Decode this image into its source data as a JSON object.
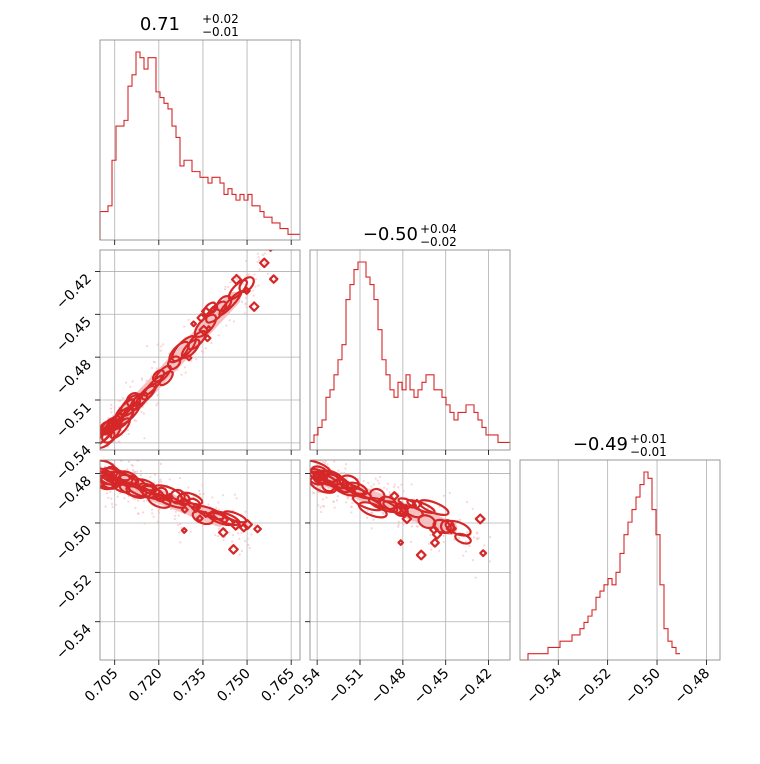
{
  "colors": {
    "series": "#d62728",
    "fill": "#f4b4b6",
    "grid": "#b0b0b0",
    "frame": "#808080"
  },
  "chart_data": {
    "type": "corner",
    "grid": true,
    "parameters": [
      {
        "titles": {
          "main": "0.71",
          "upper": "+0.02",
          "lower": "−0.01"
        },
        "range": [
          0.7,
          0.768
        ],
        "ticks": [
          0.705,
          0.72,
          0.735,
          0.75,
          0.765
        ],
        "tick_labels": [
          "0.705",
          "0.720",
          "0.735",
          "0.750",
          "0.765"
        ]
      },
      {
        "titles": {
          "main": "−0.50",
          "upper": "+0.04",
          "lower": "−0.02"
        },
        "range": [
          -0.545,
          -0.405
        ],
        "ticks": [
          -0.54,
          -0.51,
          -0.48,
          -0.45,
          -0.42
        ],
        "tick_labels": [
          "−0.54",
          "−0.51",
          "−0.48",
          "−0.45",
          "−0.42"
        ]
      },
      {
        "titles": {
          "main": "−0.49",
          "upper": "+0.01",
          "lower": "−0.01"
        },
        "range": [
          -0.5555,
          -0.4745
        ],
        "ticks": [
          -0.54,
          -0.52,
          -0.5,
          -0.48
        ],
        "tick_labels": [
          "−0.54",
          "−0.52",
          "−0.50",
          "−0.48"
        ]
      }
    ],
    "histograms": [
      {
        "param": 0,
        "x_start": 0.7,
        "bin_width": 0.00136,
        "counts": [
          5,
          5,
          6,
          14,
          20,
          20,
          21,
          27,
          29,
          33,
          32,
          30,
          32,
          32,
          26,
          25,
          24,
          23,
          20,
          18,
          13,
          14,
          14,
          12,
          12,
          11,
          11,
          10,
          11,
          11,
          10,
          8,
          9,
          8,
          7,
          8,
          7,
          8,
          6,
          6,
          5,
          4,
          4,
          3,
          3,
          2,
          2,
          1,
          1,
          1
        ]
      },
      {
        "param": 1,
        "x_start": -0.545,
        "bin_width": 0.0028,
        "counts": [
          1,
          2,
          3,
          4,
          7,
          8,
          10,
          12,
          14,
          20,
          22,
          24,
          25,
          25,
          23,
          22,
          20,
          16,
          12,
          10,
          8,
          7,
          9,
          8,
          10,
          8,
          7,
          8,
          9,
          10,
          10,
          8,
          8,
          7,
          6,
          5,
          4,
          5,
          5,
          6,
          6,
          5,
          4,
          3,
          2,
          2,
          2,
          1,
          1,
          1
        ]
      },
      {
        "param": 2,
        "x_start": -0.5555,
        "bin_width": 0.00162,
        "counts": [
          0,
          0,
          1,
          1,
          1,
          1,
          1,
          2,
          2,
          2,
          3,
          3,
          3,
          4,
          4,
          5,
          6,
          7,
          8,
          10,
          11,
          12,
          13,
          12,
          14,
          17,
          20,
          22,
          24,
          26,
          28,
          30,
          29,
          24,
          20,
          12,
          5,
          3,
          2,
          1
        ]
      }
    ],
    "scatter": [
      {
        "xparam": 0,
        "yparam": 1,
        "trend": {
          "x": [
            0.702,
            0.755
          ],
          "y": [
            -0.535,
            -0.418
          ]
        },
        "band": 0.009
      },
      {
        "xparam": 0,
        "yparam": 2,
        "trend": {
          "x": [
            0.702,
            0.75
          ],
          "y": [
            -0.481,
            -0.503
          ]
        },
        "band": 0.006
      },
      {
        "xparam": 1,
        "yparam": 2,
        "trend": {
          "x": [
            -0.54,
            -0.425
          ],
          "y": [
            -0.481,
            -0.507
          ]
        },
        "band": 0.006
      }
    ]
  }
}
